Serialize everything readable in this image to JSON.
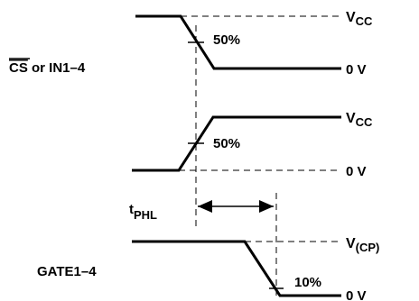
{
  "signals": {
    "input": {
      "label_overbar": "CS",
      "label_rest": " or IN1–4"
    },
    "middle": {},
    "gate": {
      "label": "GATE1–4"
    }
  },
  "levels": {
    "vcc_main": "V",
    "vcc_sub": "CC",
    "zero": "0 V",
    "vcp_main": "V",
    "vcp_sub": "(CP)"
  },
  "thresholds": {
    "fifty_top": "50%",
    "fifty_mid": "50%",
    "ten": "10%"
  },
  "timing": {
    "t_main": "t",
    "t_sub": "PHL"
  }
}
